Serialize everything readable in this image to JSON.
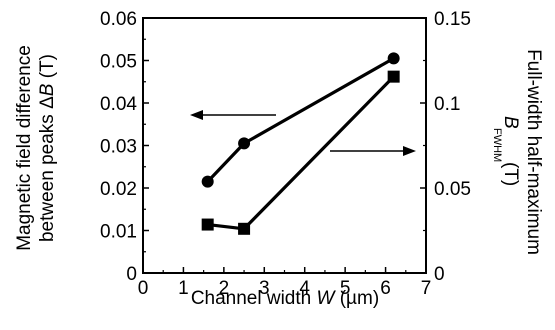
{
  "chart_data": {
    "type": "line",
    "title": "",
    "xlabel": {
      "prefix": "Channel width ",
      "var": "W",
      "suffix": " (µm)"
    },
    "ylabel_left": {
      "line1": "Magnetic field difference",
      "line2_prefix": "between peaks Δ",
      "line2_var": "B",
      "line2_suffix": " (T)"
    },
    "ylabel_right": {
      "line1": "Full-width half-maximum",
      "line2_var": "B",
      "line2_sub": "FWHM",
      "line2_suffix": "(T)"
    },
    "xlim": [
      0,
      7
    ],
    "ylim_left": [
      0,
      0.06
    ],
    "ylim_right": [
      0,
      0.15
    ],
    "xticks": [
      "0",
      "1",
      "2",
      "3",
      "4",
      "5",
      "6",
      "7"
    ],
    "yticks_left": [
      "0",
      "0.01",
      "0.02",
      "0.03",
      "0.04",
      "0.05",
      "0.06"
    ],
    "yticks_right": [
      "0",
      "0.05",
      "0.1",
      "0.15"
    ],
    "series": [
      {
        "axis": "left",
        "marker": "circle",
        "x": [
          1.6,
          2.5,
          6.2
        ],
        "y": [
          0.0215,
          0.0305,
          0.0505
        ]
      },
      {
        "axis": "right",
        "marker": "square",
        "x": [
          1.6,
          2.5,
          6.2
        ],
        "y": [
          0.0285,
          0.026,
          0.1155
        ]
      }
    ],
    "annotations": [
      {
        "type": "arrow",
        "direction": "left",
        "points_to": "left-axis"
      },
      {
        "type": "arrow",
        "direction": "right",
        "points_to": "right-axis"
      }
    ]
  }
}
